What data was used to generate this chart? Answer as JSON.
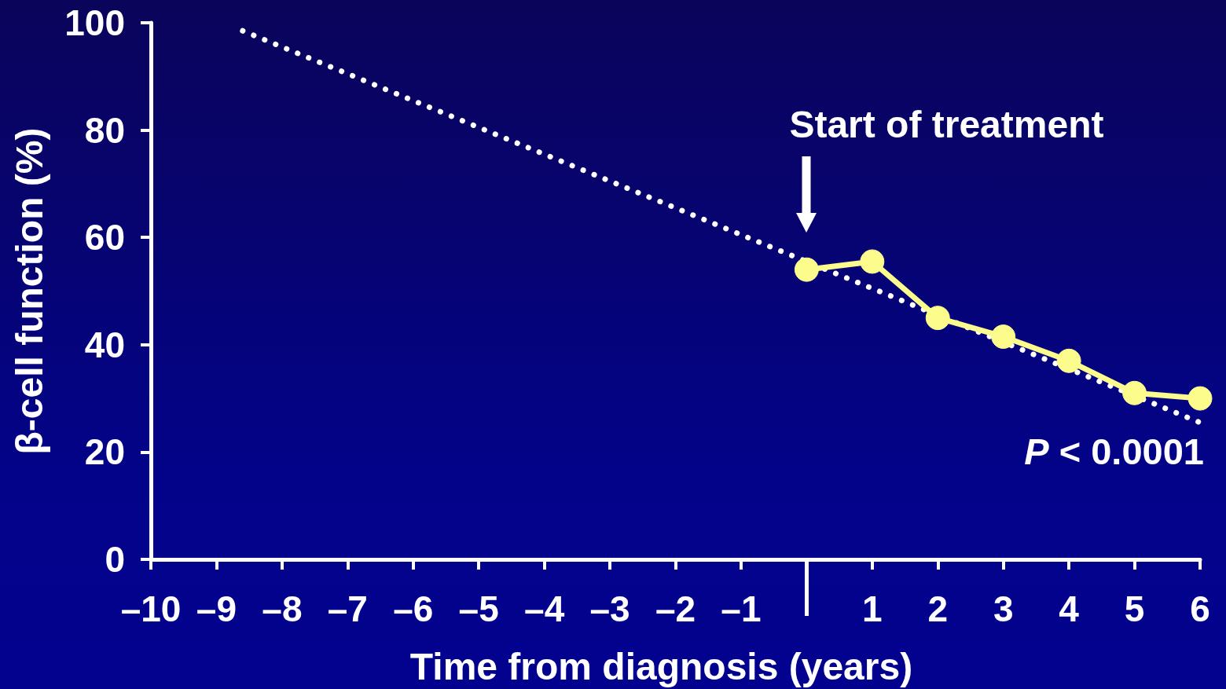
{
  "chart_data": {
    "type": "line",
    "xlabel": "Time from diagnosis (years)",
    "ylabel": "β-cell function (%)",
    "annotations": [
      "Start of treatment",
      "P < 0.0001"
    ],
    "series": [
      {
        "type": "line",
        "x": [
          -8.6,
          6
        ],
        "values": [
          98.5,
          25.5
        ],
        "color": "#ffffff",
        "line_style": "dotted",
        "marker": "none"
      },
      {
        "x": [
          0,
          1,
          2,
          3,
          4,
          5,
          6
        ],
        "values": [
          54,
          55.5,
          45,
          41.5,
          37,
          31,
          30
        ],
        "color": "#fcfc8c",
        "line_style": "solid",
        "marker": "circle"
      }
    ],
    "xlim": [
      -10,
      6
    ],
    "ylim": [
      0,
      100
    ],
    "xticks": [
      {
        "value": -10,
        "label": "–10"
      },
      {
        "value": -9,
        "label": "–9"
      },
      {
        "value": -8,
        "label": "–8"
      },
      {
        "value": -7,
        "label": "–7"
      },
      {
        "value": -6,
        "label": "–6"
      },
      {
        "value": -5,
        "label": "–5"
      },
      {
        "value": -4,
        "label": "–4"
      },
      {
        "value": -3,
        "label": "–3"
      },
      {
        "value": -2,
        "label": "–2"
      },
      {
        "value": -1,
        "label": "–1"
      },
      {
        "value": 0,
        "label": null
      },
      1,
      2,
      3,
      4,
      5,
      6
    ],
    "yticks": [
      0,
      20,
      40,
      60,
      80,
      100
    ]
  }
}
